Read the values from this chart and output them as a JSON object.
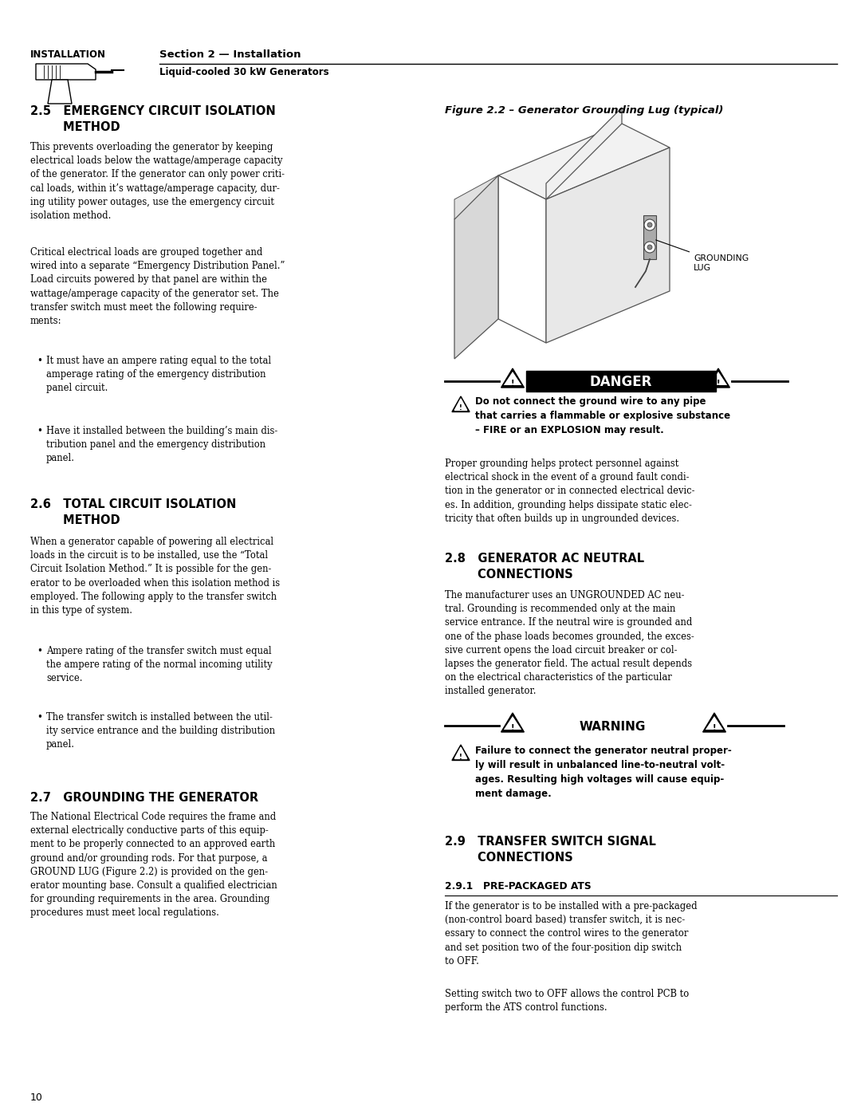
{
  "page_width": 10.8,
  "page_height": 13.97,
  "bg_color": "#ffffff",
  "header_label": "INSTALLATION",
  "header_section": "Section 2 — Installation",
  "header_subsection": "Liquid-cooled 30 kW Generators",
  "figure_caption": "Figure 2.2 – Generator Grounding Lug (typical)",
  "danger_text_bold": "Do not connect the ground wire to any pipe\nthat carries a flammable or explosive substance\n– FIRE or an EXPLOSION may result.",
  "danger_body": "Proper grounding helps protect personnel against\nelectrical shock in the event of a ground fault condi-\ntion in the generator or in connected electrical devic-\nes. In addition, grounding helps dissipate static elec-\ntricity that often builds up in ungrounded devices.",
  "warning_text_bold": "Failure to connect the generator neutral proper-\nly will result in unbalanced line-to-neutral volt-\nages. Resulting high voltages will cause equip-\nment damage.",
  "footer_page": "10",
  "sec25_title1": "2.5   EMERGENCY CIRCUIT ISOLATION",
  "sec25_title2": "        METHOD",
  "sec25_body1": "This prevents overloading the generator by keeping\nelectrical loads below the wattage/amperage capacity\nof the generator. If the generator can only power criti-\ncal loads, within it’s wattage/amperage capacity, dur-\ning utility power outages, use the emergency circuit\nisolation method.",
  "sec25_body2": "Critical electrical loads are grouped together and\nwired into a separate “Emergency Distribution Panel.”\nLoad circuits powered by that panel are within the\nwattage/amperage capacity of the generator set. The\ntransfer switch must meet the following require-\nments:",
  "sec25_b1": "It must have an ampere rating equal to the total\namperage rating of the emergency distribution\npanel circuit.",
  "sec25_b2": "Have it installed between the building’s main dis-\ntribution panel and the emergency distribution\npanel.",
  "sec26_title1": "2.6   TOTAL CIRCUIT ISOLATION",
  "sec26_title2": "        METHOD",
  "sec26_body": "When a generator capable of powering all electrical\nloads in the circuit is to be installed, use the “Total\nCircuit Isolation Method.” It is possible for the gen-\nerator to be overloaded when this isolation method is\nemployed. The following apply to the transfer switch\nin this type of system.",
  "sec26_b1": "Ampere rating of the transfer switch must equal\nthe ampere rating of the normal incoming utility\nservice.",
  "sec26_b2": "The transfer switch is installed between the util-\nity service entrance and the building distribution\npanel.",
  "sec27_title": "2.7   GROUNDING THE GENERATOR",
  "sec27_body": "The National Electrical Code requires the frame and\nexternal electrically conductive parts of this equip-\nment to be properly connected to an approved earth\nground and/or grounding rods. For that purpose, a\nGROUND LUG (Figure 2.2) is provided on the gen-\nerator mounting base. Consult a qualified electrician\nfor grounding requirements in the area. Grounding\nprocedures must meet local regulations.",
  "sec28_title1": "2.8   GENERATOR AC NEUTRAL",
  "sec28_title2": "        CONNECTIONS",
  "sec28_body": "The manufacturer uses an UNGROUNDED AC neu-\ntral. Grounding is recommended only at the main\nservice entrance. If the neutral wire is grounded and\none of the phase loads becomes grounded, the exces-\nsive current opens the load circuit breaker or col-\nlapses the generator field. The actual result depends\non the electrical characteristics of the particular\ninstalled generator.",
  "sec29_title1": "2.9   TRANSFER SWITCH SIGNAL",
  "sec29_title2": "        CONNECTIONS",
  "sec291_title": "2.9.1   PRE-PACKAGED ATS",
  "sec291_body1": "If the generator is to be installed with a pre-packaged\n(non-control board based) transfer switch, it is nec-\nessary to connect the control wires to the generator\nand set position two of the four-position dip switch\nto OFF.",
  "sec291_body2": "Setting switch two to OFF allows the control PCB to\nperform the ATS control functions."
}
